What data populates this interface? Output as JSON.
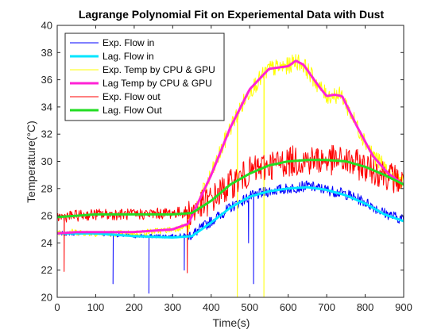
{
  "chart_data": {
    "type": "line",
    "title": "Lagrange Polynomial Fit on Experiemental Data with Dust",
    "xlabel": "Time(s)",
    "ylabel": "Temperature(°C)",
    "xlim": [
      0,
      900
    ],
    "ylim": [
      20,
      40
    ],
    "xticks": [
      0,
      100,
      200,
      300,
      400,
      500,
      600,
      700,
      800,
      900
    ],
    "yticks": [
      20,
      22,
      24,
      26,
      28,
      30,
      32,
      34,
      36,
      38,
      40
    ],
    "grid": false,
    "legend_position": "top-left",
    "series": [
      {
        "name": "Exp. Flow in",
        "kind": "experimental",
        "color": "#0000ff",
        "width": 1,
        "x": [
          0,
          100,
          200,
          300,
          350,
          400,
          450,
          500,
          550,
          600,
          650,
          700,
          750,
          800,
          850,
          900
        ],
        "y": [
          24.7,
          24.7,
          24.5,
          24.5,
          24.6,
          25.6,
          26.6,
          27.4,
          27.8,
          28.0,
          28.2,
          27.9,
          27.6,
          27.0,
          26.2,
          25.7
        ],
        "noise": 0.25,
        "spikes": [
          [
            145,
            21.0
          ],
          [
            238,
            20.3
          ],
          [
            330,
            22.0
          ],
          [
            497,
            24.0
          ],
          [
            510,
            21.0
          ]
        ]
      },
      {
        "name": "Lag. Flow in",
        "kind": "fit",
        "color": "#00e5ff",
        "width": 3,
        "x": [
          0,
          100,
          200,
          300,
          350,
          400,
          450,
          500,
          550,
          600,
          650,
          700,
          750,
          800,
          850,
          900
        ],
        "y": [
          24.7,
          24.7,
          24.5,
          24.4,
          24.5,
          25.5,
          26.6,
          27.4,
          27.8,
          28.0,
          28.1,
          27.9,
          27.5,
          26.9,
          26.1,
          25.6
        ]
      },
      {
        "name": "Exp. Temp by CPU & GPU",
        "kind": "experimental",
        "color": "#ffff00",
        "width": 1,
        "x": [
          0,
          50,
          100,
          200,
          300,
          340,
          360,
          400,
          450,
          500,
          550,
          600,
          620,
          640,
          680,
          700,
          720,
          740,
          780,
          820,
          860,
          900
        ],
        "y": [
          24.8,
          24.8,
          24.7,
          24.7,
          25.0,
          25.3,
          26.6,
          29.0,
          32.5,
          35.2,
          36.8,
          37.0,
          37.4,
          37.1,
          35.5,
          34.8,
          34.9,
          34.8,
          32.5,
          30.5,
          29.2,
          28.4
        ],
        "noise": 0.4,
        "spikes": [
          [
            468,
            20.0
          ],
          [
            537,
            20.0
          ]
        ]
      },
      {
        "name": "Lag Temp by CPU & GPU",
        "kind": "fit",
        "color": "#ff22d6",
        "width": 3,
        "x": [
          0,
          50,
          100,
          200,
          300,
          340,
          360,
          400,
          450,
          500,
          550,
          600,
          620,
          640,
          680,
          700,
          720,
          740,
          780,
          820,
          860,
          900
        ],
        "y": [
          24.7,
          24.8,
          24.8,
          24.8,
          25.0,
          25.4,
          26.6,
          29.0,
          32.5,
          35.3,
          36.8,
          37.0,
          37.4,
          37.1,
          35.5,
          34.8,
          34.9,
          34.8,
          32.5,
          30.4,
          29.1,
          28.3
        ]
      },
      {
        "name": "Exp. Flow out",
        "kind": "experimental",
        "color": "#ff0000",
        "width": 1,
        "x": [
          0,
          100,
          200,
          300,
          350,
          400,
          450,
          500,
          550,
          600,
          650,
          700,
          750,
          800,
          850,
          900
        ],
        "y": [
          25.9,
          26.1,
          26.1,
          26.2,
          26.3,
          27.2,
          28.3,
          29.2,
          29.7,
          30.0,
          30.1,
          30.1,
          30.0,
          29.6,
          29.1,
          28.4
        ],
        "noise": 0.7,
        "spikes": [
          [
            18,
            21.9
          ],
          [
            338,
            21.8
          ]
        ]
      },
      {
        "name": "Lag. Flow Out",
        "kind": "fit",
        "color": "#22dd22",
        "width": 3,
        "x": [
          0,
          100,
          200,
          300,
          350,
          400,
          450,
          500,
          550,
          600,
          650,
          700,
          750,
          800,
          850,
          900
        ],
        "y": [
          25.9,
          26.1,
          26.1,
          26.1,
          26.2,
          27.1,
          28.3,
          29.1,
          29.7,
          30.0,
          30.1,
          30.1,
          30.0,
          29.6,
          29.0,
          28.3
        ]
      }
    ]
  }
}
